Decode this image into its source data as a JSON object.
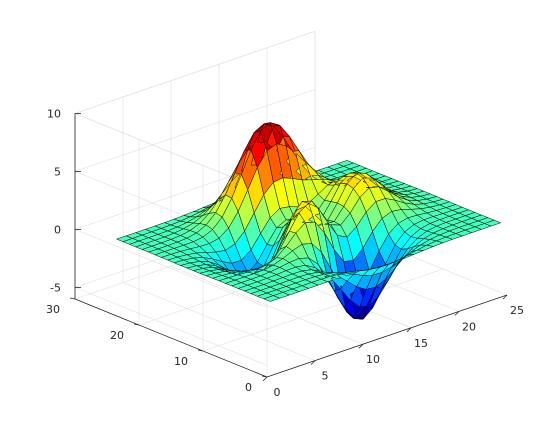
{
  "chart_data": {
    "type": "surface",
    "surface_function": "peaks",
    "grid_size": [
      25,
      25
    ],
    "xlim": [
      0,
      25
    ],
    "ylim": [
      0,
      30
    ],
    "zlim": [
      -6,
      10
    ],
    "x_ticks": [
      "0",
      "5",
      "10",
      "15",
      "20",
      "25"
    ],
    "y_ticks": [
      "0",
      "10",
      "20",
      "30"
    ],
    "z_ticks": [
      "-5",
      "0",
      "5",
      "10"
    ],
    "z_range_values": [
      -6.55,
      8.08
    ],
    "colormap": "jet",
    "edge_color": "#000000",
    "grid": true,
    "box": "partial"
  }
}
